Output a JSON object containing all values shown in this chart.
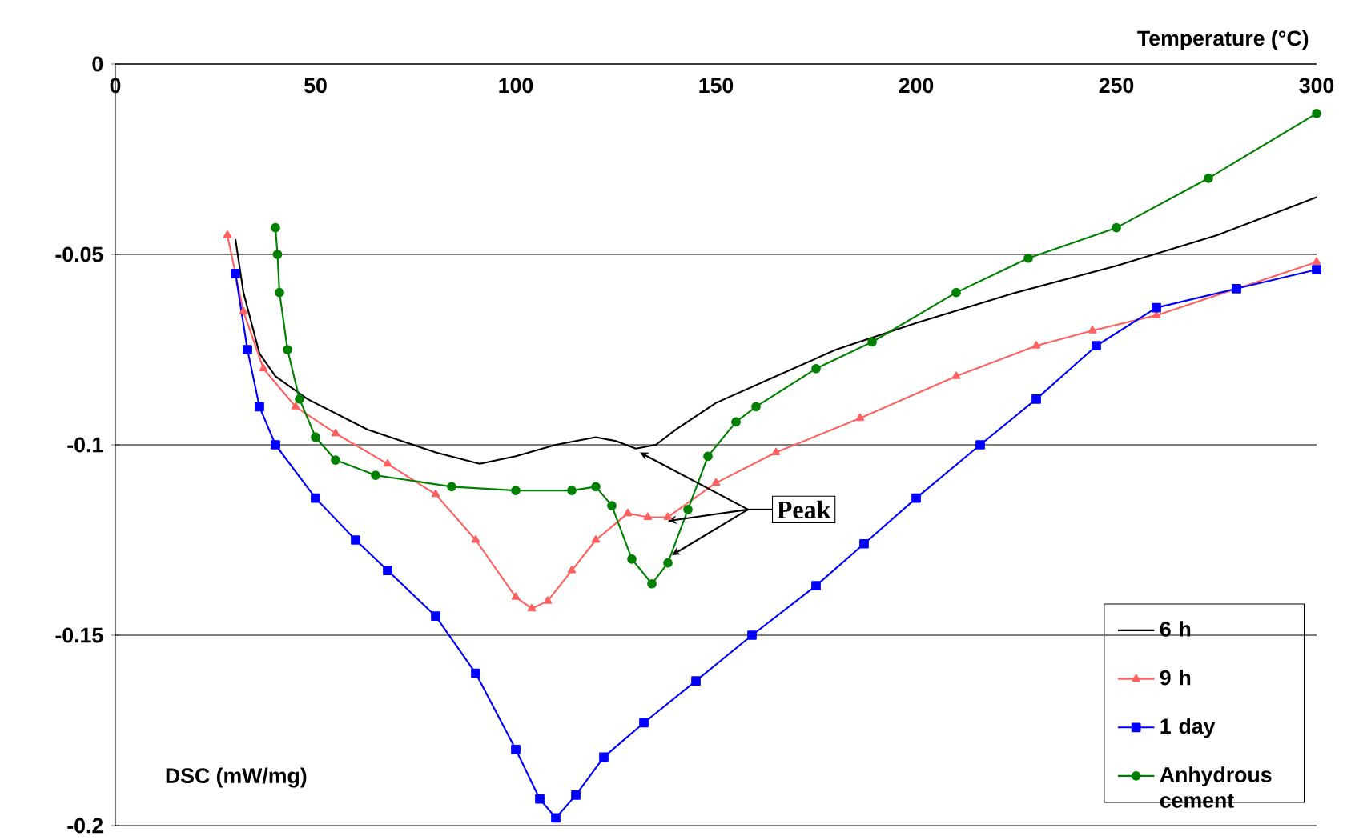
{
  "chart_data": {
    "type": "line",
    "xlabel": "Temperature (°C)",
    "ylabel": "DSC (mW/mg)",
    "xlim": [
      0,
      300
    ],
    "ylim": [
      -0.2,
      0
    ],
    "xticks": [
      0,
      50,
      100,
      150,
      200,
      250,
      300
    ],
    "yticks": [
      -0.2,
      -0.15,
      -0.1,
      -0.05,
      0
    ],
    "grid": "y",
    "legend": "bottom right",
    "annotations": [
      {
        "text": "Peak",
        "x": 139,
        "y": -0.129
      }
    ],
    "series": [
      {
        "name": "6 h",
        "color": "#000000",
        "marker": "none",
        "x": [
          30,
          32,
          36,
          40,
          48,
          63,
          80,
          91,
          100,
          110,
          120,
          125,
          130,
          135,
          140,
          150,
          165,
          180,
          200,
          225,
          250,
          275,
          300
        ],
        "values": [
          -0.046,
          -0.06,
          -0.076,
          -0.082,
          -0.088,
          -0.096,
          -0.102,
          -0.105,
          -0.103,
          -0.1,
          -0.098,
          -0.099,
          -0.101,
          -0.1,
          -0.096,
          -0.089,
          -0.082,
          -0.075,
          -0.068,
          -0.06,
          -0.053,
          -0.045,
          -0.035
        ]
      },
      {
        "name": "9 h",
        "color": "#ff6060",
        "marker": "triangle",
        "x": [
          28,
          32,
          37,
          45,
          55,
          68,
          80,
          90,
          100,
          104,
          108,
          114,
          120,
          128,
          133,
          138,
          150,
          165,
          186,
          210,
          230,
          244,
          260,
          280,
          300
        ],
        "values": [
          -0.045,
          -0.065,
          -0.08,
          -0.09,
          -0.097,
          -0.105,
          -0.113,
          -0.125,
          -0.14,
          -0.143,
          -0.141,
          -0.133,
          -0.125,
          -0.118,
          -0.119,
          -0.119,
          -0.11,
          -0.102,
          -0.093,
          -0.082,
          -0.074,
          -0.07,
          -0.066,
          -0.059,
          -0.052
        ]
      },
      {
        "name": "1 day",
        "color": "#0000ff",
        "marker": "square",
        "x": [
          30,
          33,
          36,
          40,
          50,
          60,
          68,
          80,
          90,
          100,
          106,
          110,
          115,
          122,
          132,
          145,
          159,
          175,
          187,
          200,
          216,
          230,
          245,
          260,
          280,
          300
        ],
        "values": [
          -0.055,
          -0.075,
          -0.09,
          -0.1,
          -0.114,
          -0.125,
          -0.133,
          -0.145,
          -0.16,
          -0.18,
          -0.193,
          -0.198,
          -0.192,
          -0.182,
          -0.173,
          -0.162,
          -0.15,
          -0.137,
          -0.126,
          -0.114,
          -0.1,
          -0.088,
          -0.074,
          -0.064,
          -0.059,
          -0.054
        ]
      },
      {
        "name": "Anhydrous cement",
        "color": "#008000",
        "marker": "circle",
        "x": [
          40,
          40.5,
          41,
          43,
          46,
          50,
          55,
          65,
          84,
          100,
          114,
          120,
          124,
          129,
          134,
          138,
          143,
          148,
          155,
          160,
          175,
          189,
          210,
          228,
          250,
          273,
          300
        ],
        "values": [
          -0.043,
          -0.05,
          -0.06,
          -0.075,
          -0.088,
          -0.098,
          -0.104,
          -0.108,
          -0.111,
          -0.112,
          -0.112,
          -0.111,
          -0.116,
          -0.13,
          -0.1365,
          -0.131,
          -0.117,
          -0.103,
          -0.094,
          -0.09,
          -0.08,
          -0.073,
          -0.06,
          -0.051,
          -0.043,
          -0.03,
          -0.013
        ]
      }
    ]
  }
}
